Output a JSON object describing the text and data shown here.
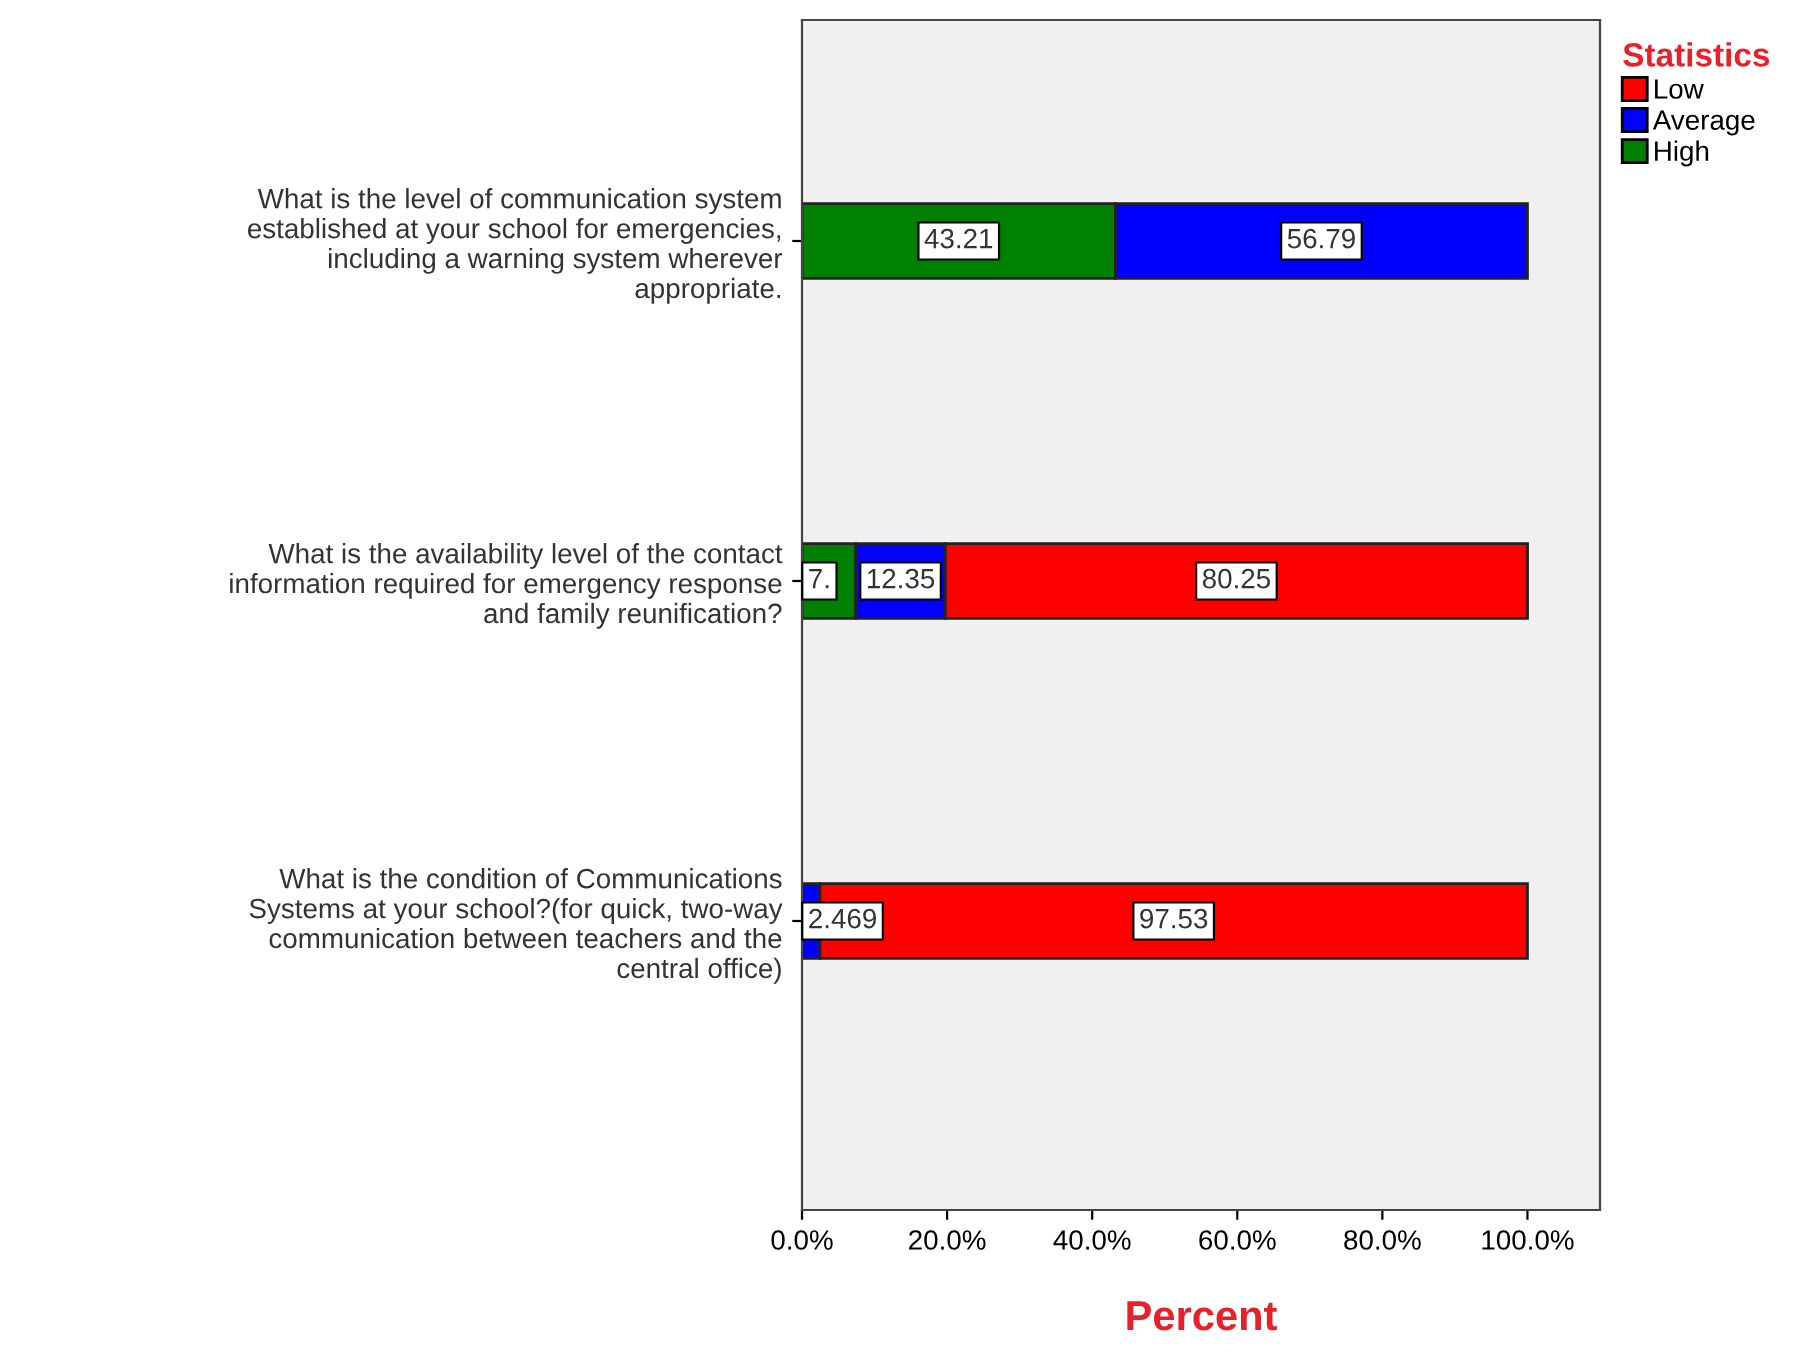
{
  "chart_data": {
    "type": "bar",
    "orientation": "horizontal",
    "stacked": true,
    "categories": [
      "What is the level of communication system\nestablished at your school for emergencies,\nincluding a warning system wherever\nappropriate.",
      "What is the availability level of the contact\ninformation required for emergency response\nand family reunification?",
      "What is the condition of Communications\nSystems at your school?(for quick, two-way\ncommunication between teachers and the\ncentral office)"
    ],
    "series": [
      {
        "name": "High",
        "color": "#008000",
        "values": [
          43.21,
          7.41,
          null
        ],
        "value_labels": [
          "43.21",
          "7.",
          null
        ]
      },
      {
        "name": "Average",
        "color": "#0000ff",
        "values": [
          56.79,
          12.35,
          2.469
        ],
        "value_labels": [
          "56.79",
          "12.35",
          "2.469"
        ]
      },
      {
        "name": "Low",
        "color": "#ff0000",
        "values": [
          null,
          80.25,
          97.53
        ],
        "value_labels": [
          null,
          "80.25",
          "97.53"
        ]
      }
    ],
    "xlabel": "Percent",
    "legend_title": "Statistics",
    "legend": "top right",
    "xlim": [
      0,
      110
    ],
    "xticks": [
      {
        "value": 0,
        "label": "0.0%"
      },
      {
        "value": 20,
        "label": "20.0%"
      },
      {
        "value": 40,
        "label": "40.0%"
      },
      {
        "value": 60,
        "label": "60.0%"
      },
      {
        "value": 80,
        "label": "80.0%"
      },
      {
        "value": 100,
        "label": "100.0%"
      }
    ],
    "grid": false
  }
}
